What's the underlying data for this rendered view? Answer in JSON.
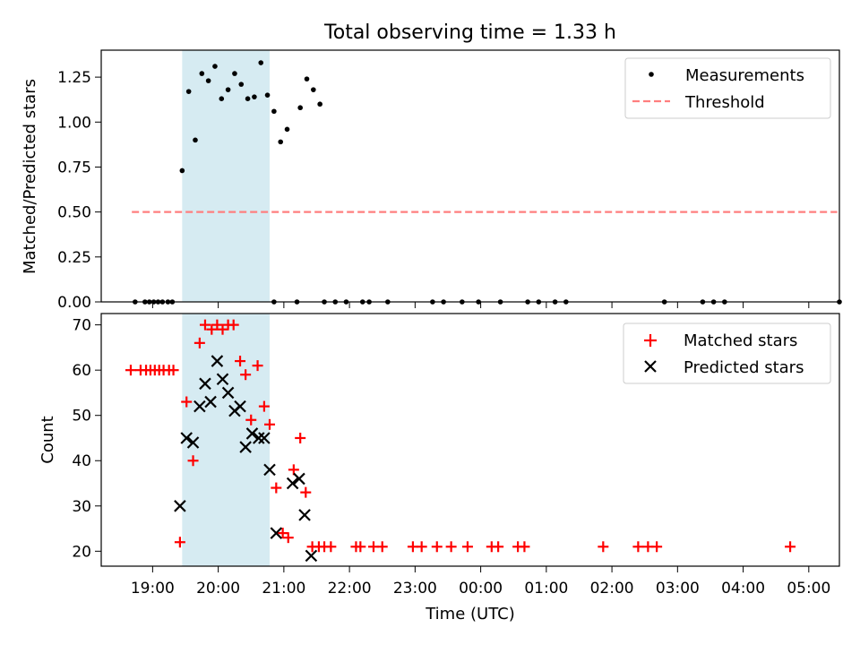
{
  "chart_data": [
    {
      "type": "scatter",
      "title": "Total observing time = 1.33 h",
      "xlabel": "",
      "ylabel": "Matched/Predicted stars",
      "xlim": [
        "18:13",
        "05:28"
      ],
      "ylim": [
        0,
        1.4
      ],
      "y_ticks": [
        "0.00",
        "0.25",
        "0.50",
        "0.75",
        "1.00",
        "1.25"
      ],
      "grid": false,
      "legend_position": "top-right",
      "shaded_interval": [
        "19:27",
        "20:47"
      ],
      "shade_color": "#add8e6",
      "series": [
        {
          "name": "Measurements",
          "marker": "dot",
          "color": "#000000",
          "points": [
            [
              "19:27",
              0.73
            ],
            [
              "19:33",
              1.17
            ],
            [
              "19:39",
              0.9
            ],
            [
              "19:45",
              1.27
            ],
            [
              "19:51",
              1.23
            ],
            [
              "19:57",
              1.31
            ],
            [
              "20:03",
              1.13
            ],
            [
              "20:09",
              1.18
            ],
            [
              "20:15",
              1.27
            ],
            [
              "20:21",
              1.21
            ],
            [
              "20:27",
              1.13
            ],
            [
              "20:33",
              1.14
            ],
            [
              "20:39",
              1.33
            ],
            [
              "20:45",
              1.15
            ],
            [
              "20:51",
              1.06
            ],
            [
              "20:57",
              0.89
            ],
            [
              "21:03",
              0.96
            ],
            [
              "21:15",
              1.08
            ],
            [
              "21:21",
              1.24
            ],
            [
              "21:27",
              1.18
            ],
            [
              "21:33",
              1.1
            ],
            [
              "18:44",
              0
            ],
            [
              "18:53",
              0
            ],
            [
              "18:57",
              0
            ],
            [
              "19:01",
              0
            ],
            [
              "19:05",
              0
            ],
            [
              "19:09",
              0
            ],
            [
              "19:14",
              0
            ],
            [
              "19:18",
              0
            ],
            [
              "20:51",
              0
            ],
            [
              "21:12",
              0
            ],
            [
              "21:37",
              0
            ],
            [
              "21:47",
              0
            ],
            [
              "21:57",
              0
            ],
            [
              "22:12",
              0
            ],
            [
              "22:18",
              0
            ],
            [
              "22:35",
              0
            ],
            [
              "23:16",
              0
            ],
            [
              "23:26",
              0
            ],
            [
              "23:43",
              0
            ],
            [
              "23:58",
              0
            ],
            [
              "00:18",
              0
            ],
            [
              "00:43",
              0
            ],
            [
              "00:53",
              0
            ],
            [
              "01:08",
              0
            ],
            [
              "01:18",
              0
            ],
            [
              "02:48",
              0
            ],
            [
              "03:23",
              0
            ],
            [
              "03:33",
              0
            ],
            [
              "03:43",
              0
            ],
            [
              "05:28",
              0
            ]
          ]
        },
        {
          "name": "Threshold",
          "marker": "dashed-line",
          "color": "#ff7f7f",
          "points": [
            [
              "18:41",
              0.5
            ],
            [
              "05:26",
              0.5
            ]
          ]
        }
      ]
    },
    {
      "type": "scatter",
      "title": "",
      "xlabel": "Time (UTC)",
      "ylabel": "Count",
      "xlim": [
        "18:13",
        "05:28"
      ],
      "ylim": [
        16.7,
        72.5
      ],
      "y_ticks": [
        "20",
        "30",
        "40",
        "50",
        "60",
        "70"
      ],
      "x_ticks": [
        "19:00",
        "20:00",
        "21:00",
        "22:00",
        "23:00",
        "00:00",
        "01:00",
        "02:00",
        "03:00",
        "04:00",
        "05:00"
      ],
      "grid": false,
      "legend_position": "top-right",
      "shaded_interval": [
        "19:27",
        "20:47"
      ],
      "shade_color": "#add8e6",
      "series": [
        {
          "name": "Matched stars",
          "marker": "plus",
          "color": "#ff0000",
          "points": [
            [
              "18:40",
              60
            ],
            [
              "18:49",
              60
            ],
            [
              "18:54",
              60
            ],
            [
              "18:58",
              60
            ],
            [
              "19:02",
              60
            ],
            [
              "19:06",
              60
            ],
            [
              "19:10",
              60
            ],
            [
              "19:15",
              60
            ],
            [
              "19:19",
              60
            ],
            [
              "19:25",
              22
            ],
            [
              "19:31",
              53
            ],
            [
              "19:37",
              40
            ],
            [
              "19:43",
              66
            ],
            [
              "19:48",
              70
            ],
            [
              "19:54",
              69
            ],
            [
              "19:59",
              70
            ],
            [
              "20:04",
              69
            ],
            [
              "20:09",
              70
            ],
            [
              "20:14",
              70
            ],
            [
              "20:20",
              62
            ],
            [
              "20:25",
              59
            ],
            [
              "20:30",
              49
            ],
            [
              "20:36",
              61
            ],
            [
              "20:42",
              52
            ],
            [
              "20:47",
              48
            ],
            [
              "20:53",
              34
            ],
            [
              "20:59",
              24
            ],
            [
              "21:04",
              23
            ],
            [
              "21:09",
              38
            ],
            [
              "21:15",
              45
            ],
            [
              "21:20",
              33
            ],
            [
              "21:26",
              21
            ],
            [
              "21:32",
              21
            ],
            [
              "21:37",
              21
            ],
            [
              "21:43",
              21
            ],
            [
              "22:06",
              21
            ],
            [
              "22:10",
              21
            ],
            [
              "22:22",
              21
            ],
            [
              "22:30",
              21
            ],
            [
              "22:58",
              21
            ],
            [
              "23:06",
              21
            ],
            [
              "23:20",
              21
            ],
            [
              "23:33",
              21
            ],
            [
              "23:48",
              21
            ],
            [
              "00:10",
              21
            ],
            [
              "00:16",
              21
            ],
            [
              "00:34",
              21
            ],
            [
              "00:40",
              21
            ],
            [
              "01:52",
              21
            ],
            [
              "02:24",
              21
            ],
            [
              "02:33",
              21
            ],
            [
              "02:41",
              21
            ],
            [
              "04:43",
              21
            ]
          ]
        },
        {
          "name": "Predicted stars",
          "marker": "x",
          "color": "#000000",
          "points": [
            [
              "19:25",
              30
            ],
            [
              "19:31",
              45
            ],
            [
              "19:37",
              44
            ],
            [
              "19:43",
              52
            ],
            [
              "19:48",
              57
            ],
            [
              "19:53",
              53
            ],
            [
              "19:59",
              62
            ],
            [
              "20:04",
              58
            ],
            [
              "20:09",
              55
            ],
            [
              "20:15",
              51
            ],
            [
              "20:20",
              52
            ],
            [
              "20:25",
              43
            ],
            [
              "20:31",
              46
            ],
            [
              "20:37",
              45
            ],
            [
              "20:42",
              45
            ],
            [
              "20:47",
              38
            ],
            [
              "20:53",
              24
            ],
            [
              "21:08",
              35
            ],
            [
              "21:14",
              36
            ],
            [
              "21:19",
              28
            ],
            [
              "21:25",
              19
            ]
          ]
        }
      ]
    }
  ]
}
